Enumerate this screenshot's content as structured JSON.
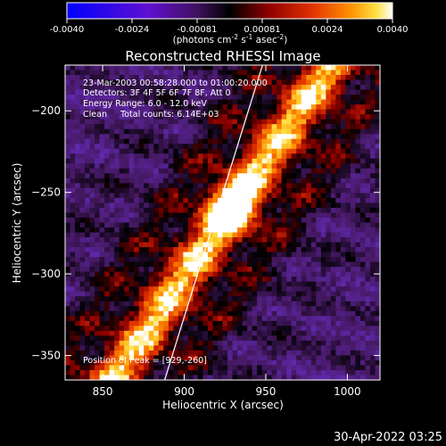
{
  "colorbar": {
    "ticks": [
      "-0.0040",
      "-0.0024",
      "-0.00081",
      "0.00081",
      "0.0024",
      "0.0040"
    ],
    "unit_main": "(photons cm",
    "unit_sup1": "-2",
    "unit_mid": " s",
    "unit_sup2": "-1",
    "unit_end": " asec",
    "unit_sup3": "-2",
    "unit_close": ")"
  },
  "info": {
    "line1": "23-Mar-2003 00:58:28.000 to 01:00:20.000",
    "line2": "Detectors: 3F 4F 5F 6F 7F 8F, Att 0",
    "line3": "Energy Range: 6.0 - 12.0 keV",
    "line4": "Clean     Total counts: 6.14E+03",
    "peak": "Position of Peak = [929,-260]"
  },
  "timestamp": "30-Apr-2022 03:25",
  "chart_data": {
    "type": "heatmap",
    "title": "Reconstructed RHESSI Image",
    "xlabel": "Heliocentric X (arcsec)",
    "ylabel": "Heliocentric Y (arcsec)",
    "xlim": [
      827,
      1020
    ],
    "ylim": [
      -365,
      -172
    ],
    "x_ticks": [
      850,
      900,
      950,
      1000
    ],
    "y_ticks": [
      -200,
      -250,
      -300,
      -350
    ],
    "y_tick_labels": [
      "−200",
      "−250",
      "−300",
      "−350"
    ],
    "colorbar_range": [
      -0.004,
      0.004
    ],
    "colormap": "blue-purple-black-red-yellow-white",
    "peak": [
      929,
      -260
    ],
    "limb_line": [
      [
        888,
        -365
      ],
      [
        948,
        -172
      ]
    ],
    "colors": {
      "cb_low": "#0000ff",
      "cb_mid": "#000000",
      "cb_high": "#ffffff"
    }
  }
}
